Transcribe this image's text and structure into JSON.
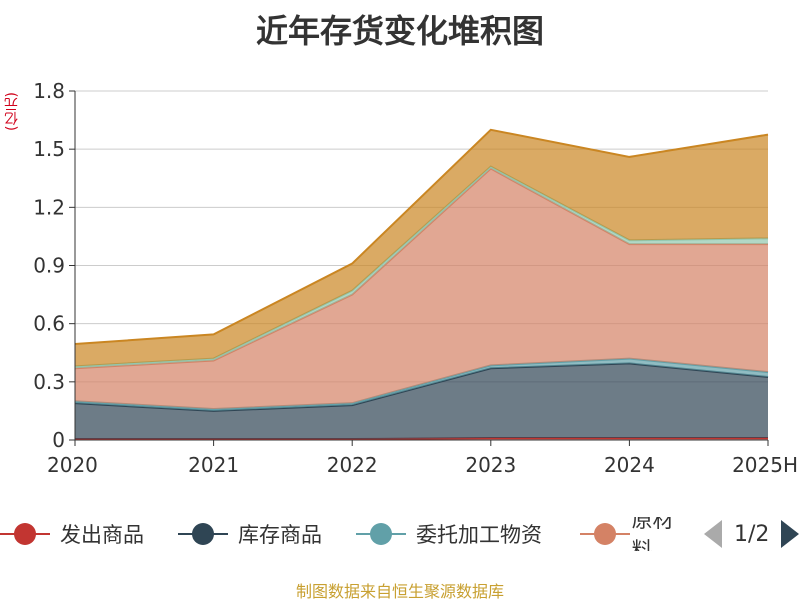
{
  "chart_data": {
    "type": "area",
    "stacked": true,
    "title": "近年存货变化堆积图",
    "ylabel": "(亿元)",
    "categories": [
      "2020",
      "2021",
      "2022",
      "2023",
      "2024",
      "2025H"
    ],
    "ylim": [
      0,
      1.8
    ],
    "yticks": [
      "0",
      "0.3",
      "0.6",
      "0.9",
      "1.2",
      "1.5",
      "1.8"
    ],
    "grid": true,
    "legend_position": "bottom",
    "series": [
      {
        "name": "发出商品",
        "color": "#c23531",
        "values": [
          0.005,
          0.005,
          0.005,
          0.01,
          0.01,
          0.01
        ]
      },
      {
        "name": "库存商品",
        "color": "#2f4554",
        "values": [
          0.185,
          0.145,
          0.175,
          0.36,
          0.385,
          0.315
        ]
      },
      {
        "name": "委托加工物资",
        "color": "#61a0a8",
        "values": [
          0.01,
          0.01,
          0.01,
          0.015,
          0.025,
          0.025
        ]
      },
      {
        "name": "原材料",
        "color": "#d48265",
        "values": [
          0.17,
          0.25,
          0.56,
          1.015,
          0.59,
          0.66
        ]
      },
      {
        "name": "",
        "color": "#91c7ae",
        "values": [
          0.01,
          0.01,
          0.02,
          0.01,
          0.02,
          0.03
        ]
      },
      {
        "name": "",
        "color": "#ca8622",
        "values": [
          0.115,
          0.125,
          0.14,
          0.19,
          0.43,
          0.535
        ]
      }
    ]
  },
  "legend": {
    "items": [
      "发出商品",
      "库存商品",
      "委托加工物资",
      "原材料"
    ],
    "page": "1/2"
  },
  "footer": {
    "source": "制图数据来自恒生聚源数据库"
  }
}
